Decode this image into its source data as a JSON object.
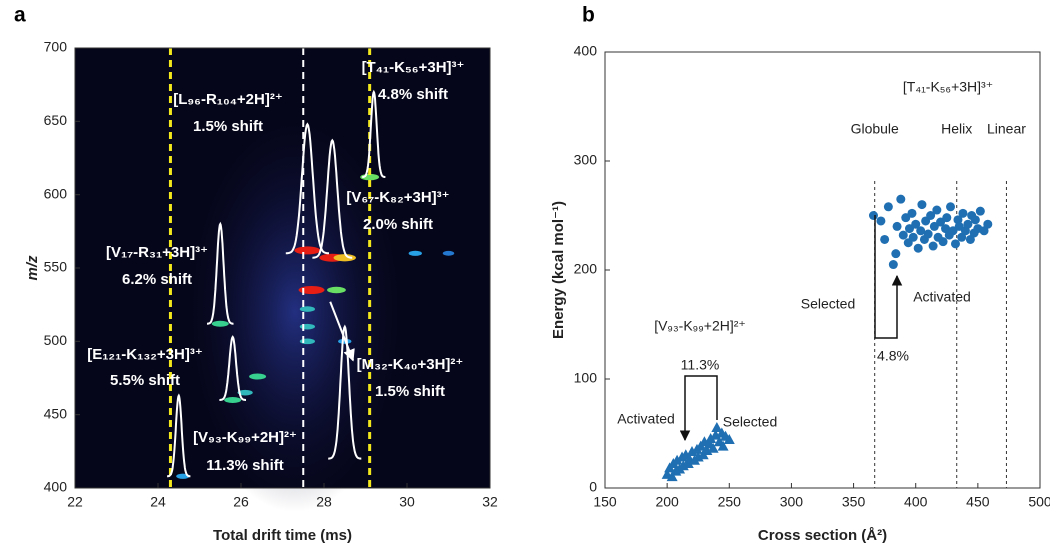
{
  "chart_data": [
    {
      "type": "heatmap",
      "panel_label": "a",
      "xlabel": "Total drift time (ms)",
      "ylabel": "m/z",
      "xlim": [
        22,
        32
      ],
      "xticks": [
        22,
        24,
        26,
        28,
        30,
        32
      ],
      "ylim": [
        400,
        700
      ],
      "yticks": [
        400,
        450,
        500,
        550,
        600,
        650,
        700
      ],
      "spots": {
        "x": [
          27.6,
          28.2,
          28.5,
          27.7,
          28.3,
          29.1,
          25.5,
          25.8,
          26.4,
          26.1,
          27.6,
          27.6,
          27.6,
          28.5,
          24.6,
          30.2,
          31.0
        ],
        "y": [
          562,
          557,
          557,
          535,
          535,
          612,
          512,
          460,
          476,
          465,
          522,
          500,
          510,
          500,
          408,
          560,
          560
        ],
        "intensity": [
          1,
          1,
          0.8,
          1,
          0.6,
          0.6,
          0.5,
          0.5,
          0.5,
          0.4,
          0.4,
          0.4,
          0.4,
          0.3,
          0.3,
          0.3,
          0.2
        ]
      },
      "peaks": {
        "x": [
          25.5,
          25.8,
          24.5,
          27.6,
          28.2,
          29.2,
          28.5
        ],
        "y": [
          512,
          460,
          408,
          560,
          557,
          612,
          420
        ],
        "height": [
          68,
          43,
          55,
          88,
          80,
          58,
          90
        ],
        "width": [
          0.08,
          0.08,
          0.07,
          0.13,
          0.12,
          0.07,
          0.1
        ]
      },
      "vlines": [
        {
          "x": 24.3,
          "color": "#f2e81c"
        },
        {
          "x": 27.5,
          "color": "#ffffff"
        },
        {
          "x": 29.1,
          "color": "#f2e81c"
        }
      ],
      "annotations": [
        {
          "lines": [
            "[L₉₆-R₁₀₄+2H]²⁺",
            "1.5% shift"
          ]
        },
        {
          "lines": [
            "[T₄₁-K₅₆+3H]³⁺",
            "4.8% shift"
          ]
        },
        {
          "lines": [
            "[V₆₇-K₈₂+3H]³⁺",
            "2.0% shift"
          ]
        },
        {
          "lines": [
            "[V₁₇-R₃₁+3H]³⁺",
            "6.2% shift"
          ]
        },
        {
          "lines": [
            "[E₁₂₁-K₁₃₂+3H]³⁺",
            "5.5% shift"
          ]
        },
        {
          "lines": [
            "[V₉₃-K₉₉+2H]²⁺",
            "11.3% shift"
          ]
        },
        {
          "lines": [
            "[M₃₂-K₄₀+3H]²⁺",
            "1.5% shift"
          ]
        }
      ]
    },
    {
      "type": "scatter",
      "panel_label": "b",
      "xlabel": "Cross section (Å²)",
      "ylabel": "Energy (kcal mol⁻¹)",
      "xlim": [
        150,
        500
      ],
      "xticks": [
        150,
        200,
        250,
        300,
        350,
        400,
        450,
        500
      ],
      "ylim": [
        0,
        400
      ],
      "yticks": [
        0,
        100,
        200,
        300,
        400
      ],
      "series": [
        {
          "marker": "triangle",
          "color": "#1f6fb2",
          "x": [
            200,
            202,
            204,
            205,
            207,
            208,
            210,
            212,
            213,
            215,
            217,
            218,
            220,
            222,
            224,
            225,
            227,
            229,
            230,
            232,
            234,
            235,
            237,
            239,
            240,
            242,
            244,
            245,
            247,
            250
          ],
          "values": [
            12,
            18,
            10,
            22,
            15,
            25,
            17,
            28,
            20,
            30,
            22,
            26,
            33,
            25,
            35,
            28,
            38,
            30,
            42,
            34,
            40,
            45,
            36,
            48,
            55,
            42,
            50,
            38,
            47,
            44
          ]
        },
        {
          "marker": "circle",
          "color": "#1f6fb2",
          "x": [
            366,
            372,
            375,
            378,
            382,
            384,
            385,
            388,
            390,
            392,
            394,
            395,
            397,
            398,
            400,
            402,
            404,
            405,
            407,
            408,
            410,
            412,
            414,
            415,
            417,
            418,
            420,
            422,
            424,
            425,
            427,
            428,
            430,
            432,
            434,
            435,
            437,
            438,
            440,
            442,
            444,
            445,
            447,
            448,
            450,
            452,
            455,
            458
          ],
          "values": [
            250,
            245,
            228,
            258,
            205,
            215,
            240,
            265,
            232,
            248,
            225,
            238,
            252,
            230,
            242,
            220,
            236,
            260,
            228,
            245,
            233,
            250,
            222,
            240,
            255,
            230,
            244,
            226,
            238,
            248,
            232,
            258,
            236,
            224,
            246,
            240,
            230,
            252,
            236,
            242,
            228,
            250,
            234,
            246,
            238,
            254,
            236,
            242
          ]
        }
      ],
      "vlines": [
        {
          "x": 367,
          "label": "Globule"
        },
        {
          "x": 433,
          "label": "Helix"
        },
        {
          "x": 473,
          "label": "Linear"
        }
      ],
      "annotations": [
        "[T₄₁-K₅₆+3H]³⁺",
        "Selected",
        "Activated",
        "4.8%",
        "[V₉₃-K₉₉+2H]²⁺",
        "11.3%",
        "Selected",
        "Activated"
      ]
    }
  ]
}
